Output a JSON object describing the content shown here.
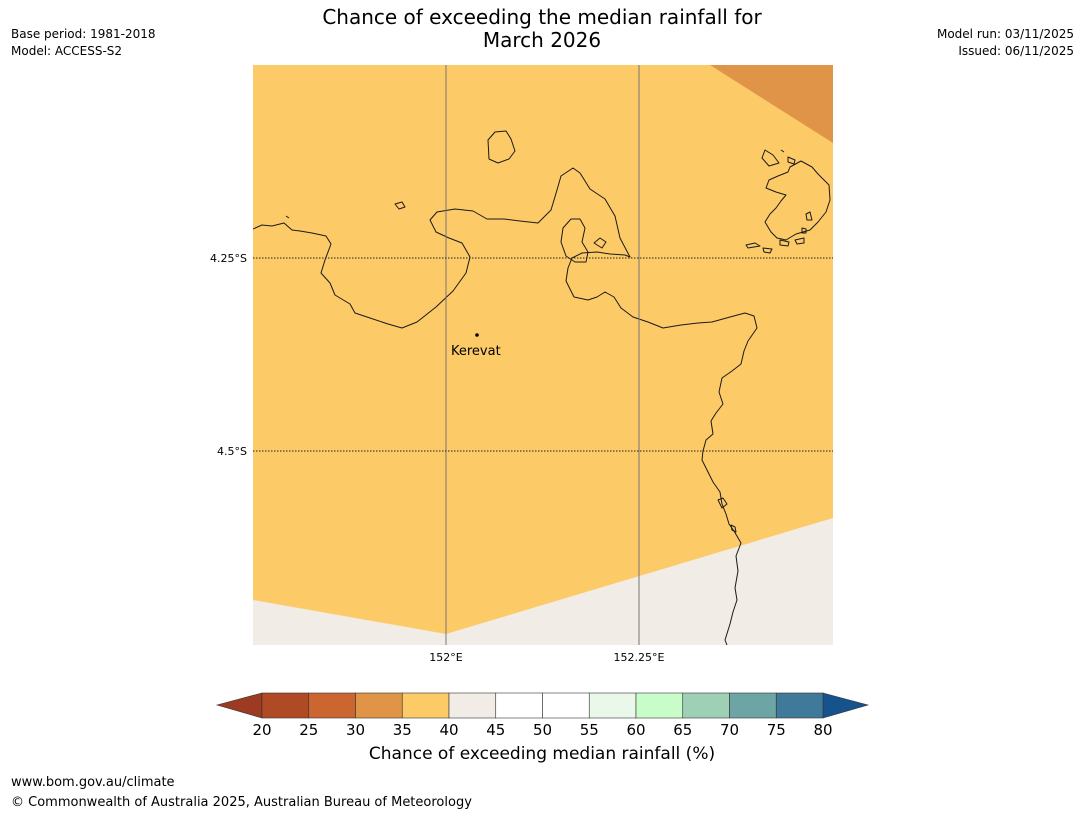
{
  "header": {
    "title_line1": "Chance of exceeding the median rainfall for",
    "title_line2": "March 2026",
    "base_period": "Base period: 1981-2018",
    "model": "Model: ACCESS-S2",
    "model_run": "Model run: 03/11/2025",
    "issued": "Issued: 06/11/2025"
  },
  "map": {
    "lat_labels": [
      "4.25°S",
      "4.5°S"
    ],
    "lon_labels": [
      "152°E",
      "152.25°E"
    ],
    "place_name": "Kerevat",
    "colors": {
      "class_35_40": "#fdca68",
      "class_30_35": "#e09447",
      "class_40_45": "#f1ece6",
      "coastline": "#1a1a1a"
    }
  },
  "colorbar": {
    "label": "Chance of exceeding median rainfall (%)",
    "ticks": [
      "20",
      "25",
      "30",
      "35",
      "40",
      "45",
      "50",
      "55",
      "60",
      "65",
      "70",
      "75",
      "80"
    ],
    "below_color": "#9c3a22",
    "above_color": "#16528c",
    "segment_colors": [
      "#b04a24",
      "#cc6630",
      "#e09447",
      "#fdca68",
      "#f1ece6",
      "#ffffff",
      "#ffffff",
      "#eaf8ea",
      "#c8fcc8",
      "#9ed0b6",
      "#6da4a4",
      "#3f7a9a"
    ]
  },
  "footer": {
    "url": "www.bom.gov.au/climate",
    "copyright": "© Commonwealth of Australia 2025, Australian Bureau of Meteorology"
  }
}
